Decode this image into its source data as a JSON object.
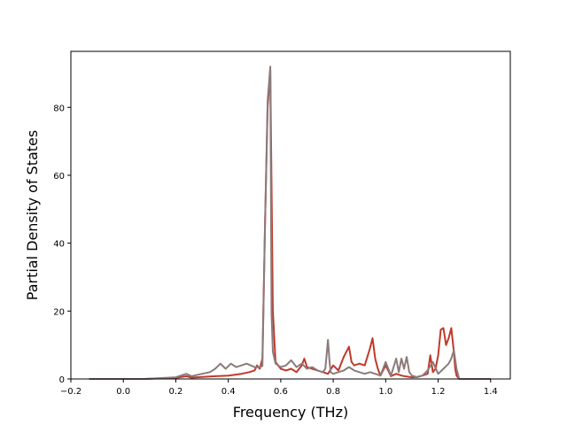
{
  "chart_data": {
    "type": "line",
    "title": "",
    "xlabel": "Frequency (THz)",
    "ylabel": "Partial Density of States",
    "xlim": [
      -0.2,
      1.475
    ],
    "ylim": [
      0,
      96.5
    ],
    "xticks": [
      -0.2,
      0.0,
      0.2,
      0.4,
      0.6,
      0.8,
      1.0,
      1.2,
      1.4
    ],
    "xtick_labels": [
      "−0.2",
      "0.0",
      "0.2",
      "0.4",
      "0.6",
      "0.8",
      "1.0",
      "1.2",
      "1.4"
    ],
    "yticks": [
      0,
      20,
      40,
      60,
      80
    ],
    "ytick_labels": [
      "0",
      "20",
      "40",
      "60",
      "80"
    ],
    "grid": false,
    "legend": false,
    "series": [
      {
        "color": "#c0392b",
        "x": [
          -0.13,
          0.08,
          0.2,
          0.24,
          0.26,
          0.3,
          0.35,
          0.4,
          0.45,
          0.48,
          0.5,
          0.51,
          0.52,
          0.53,
          0.54,
          0.55,
          0.56,
          0.57,
          0.58,
          0.6,
          0.62,
          0.64,
          0.66,
          0.68,
          0.69,
          0.7,
          0.72,
          0.74,
          0.76,
          0.78,
          0.8,
          0.82,
          0.84,
          0.86,
          0.87,
          0.88,
          0.9,
          0.92,
          0.94,
          0.95,
          0.96,
          0.97,
          0.98,
          1.0,
          1.02,
          1.04,
          1.06,
          1.08,
          1.1,
          1.12,
          1.14,
          1.16,
          1.17,
          1.18,
          1.19,
          1.2,
          1.21,
          1.22,
          1.23,
          1.24,
          1.25,
          1.26,
          1.265,
          1.27,
          1.28,
          1.4
        ],
        "y": [
          0,
          0,
          0.3,
          0.8,
          0.4,
          0.6,
          0.8,
          1.0,
          1.5,
          2.0,
          2.5,
          4.0,
          3.0,
          6.0,
          45,
          80,
          91,
          20,
          5,
          3.0,
          2.5,
          3.0,
          2.0,
          4.0,
          6.0,
          3.5,
          3.0,
          2.5,
          2.0,
          1.5,
          4.0,
          2.5,
          6.5,
          9.5,
          5.0,
          4.0,
          4.5,
          4.0,
          9.0,
          12,
          6.0,
          3.0,
          1.0,
          4.0,
          0.8,
          1.5,
          1.0,
          0.7,
          0.5,
          0.6,
          1.0,
          1.5,
          7.0,
          2.0,
          3.0,
          7.0,
          14.5,
          15,
          10,
          12,
          15,
          8.0,
          3.0,
          1.0,
          0,
          0
        ]
      },
      {
        "color": "#8c7b7b",
        "x": [
          -0.13,
          0.08,
          0.2,
          0.24,
          0.26,
          0.3,
          0.33,
          0.35,
          0.37,
          0.39,
          0.41,
          0.43,
          0.45,
          0.47,
          0.5,
          0.52,
          0.53,
          0.54,
          0.55,
          0.56,
          0.565,
          0.57,
          0.58,
          0.6,
          0.62,
          0.64,
          0.66,
          0.68,
          0.7,
          0.72,
          0.74,
          0.76,
          0.77,
          0.78,
          0.785,
          0.79,
          0.8,
          0.82,
          0.84,
          0.86,
          0.88,
          0.9,
          0.92,
          0.94,
          0.96,
          0.98,
          1.0,
          1.02,
          1.04,
          1.05,
          1.06,
          1.07,
          1.08,
          1.09,
          1.1,
          1.12,
          1.14,
          1.16,
          1.18,
          1.2,
          1.22,
          1.24,
          1.25,
          1.26,
          1.27,
          1.28,
          1.4
        ],
        "y": [
          0,
          0,
          0.5,
          1.5,
          0.8,
          1.5,
          2.0,
          3.0,
          4.5,
          3.0,
          4.5,
          3.5,
          4.0,
          4.5,
          3.5,
          3.5,
          3.8,
          45,
          82,
          92,
          19,
          8.0,
          4.5,
          3.5,
          4.0,
          5.5,
          3.5,
          4.5,
          3.0,
          3.5,
          2.5,
          2.0,
          3.0,
          11.5,
          6.0,
          2.0,
          1.5,
          2.0,
          2.5,
          3.5,
          2.5,
          2.0,
          1.5,
          2.0,
          1.5,
          1.0,
          5.0,
          1.0,
          6.0,
          2.0,
          6.0,
          3.0,
          6.5,
          2.0,
          1.0,
          0.5,
          1.0,
          2.5,
          5.0,
          1.5,
          3.0,
          4.5,
          6.0,
          8.5,
          3.0,
          0,
          0
        ]
      }
    ]
  }
}
